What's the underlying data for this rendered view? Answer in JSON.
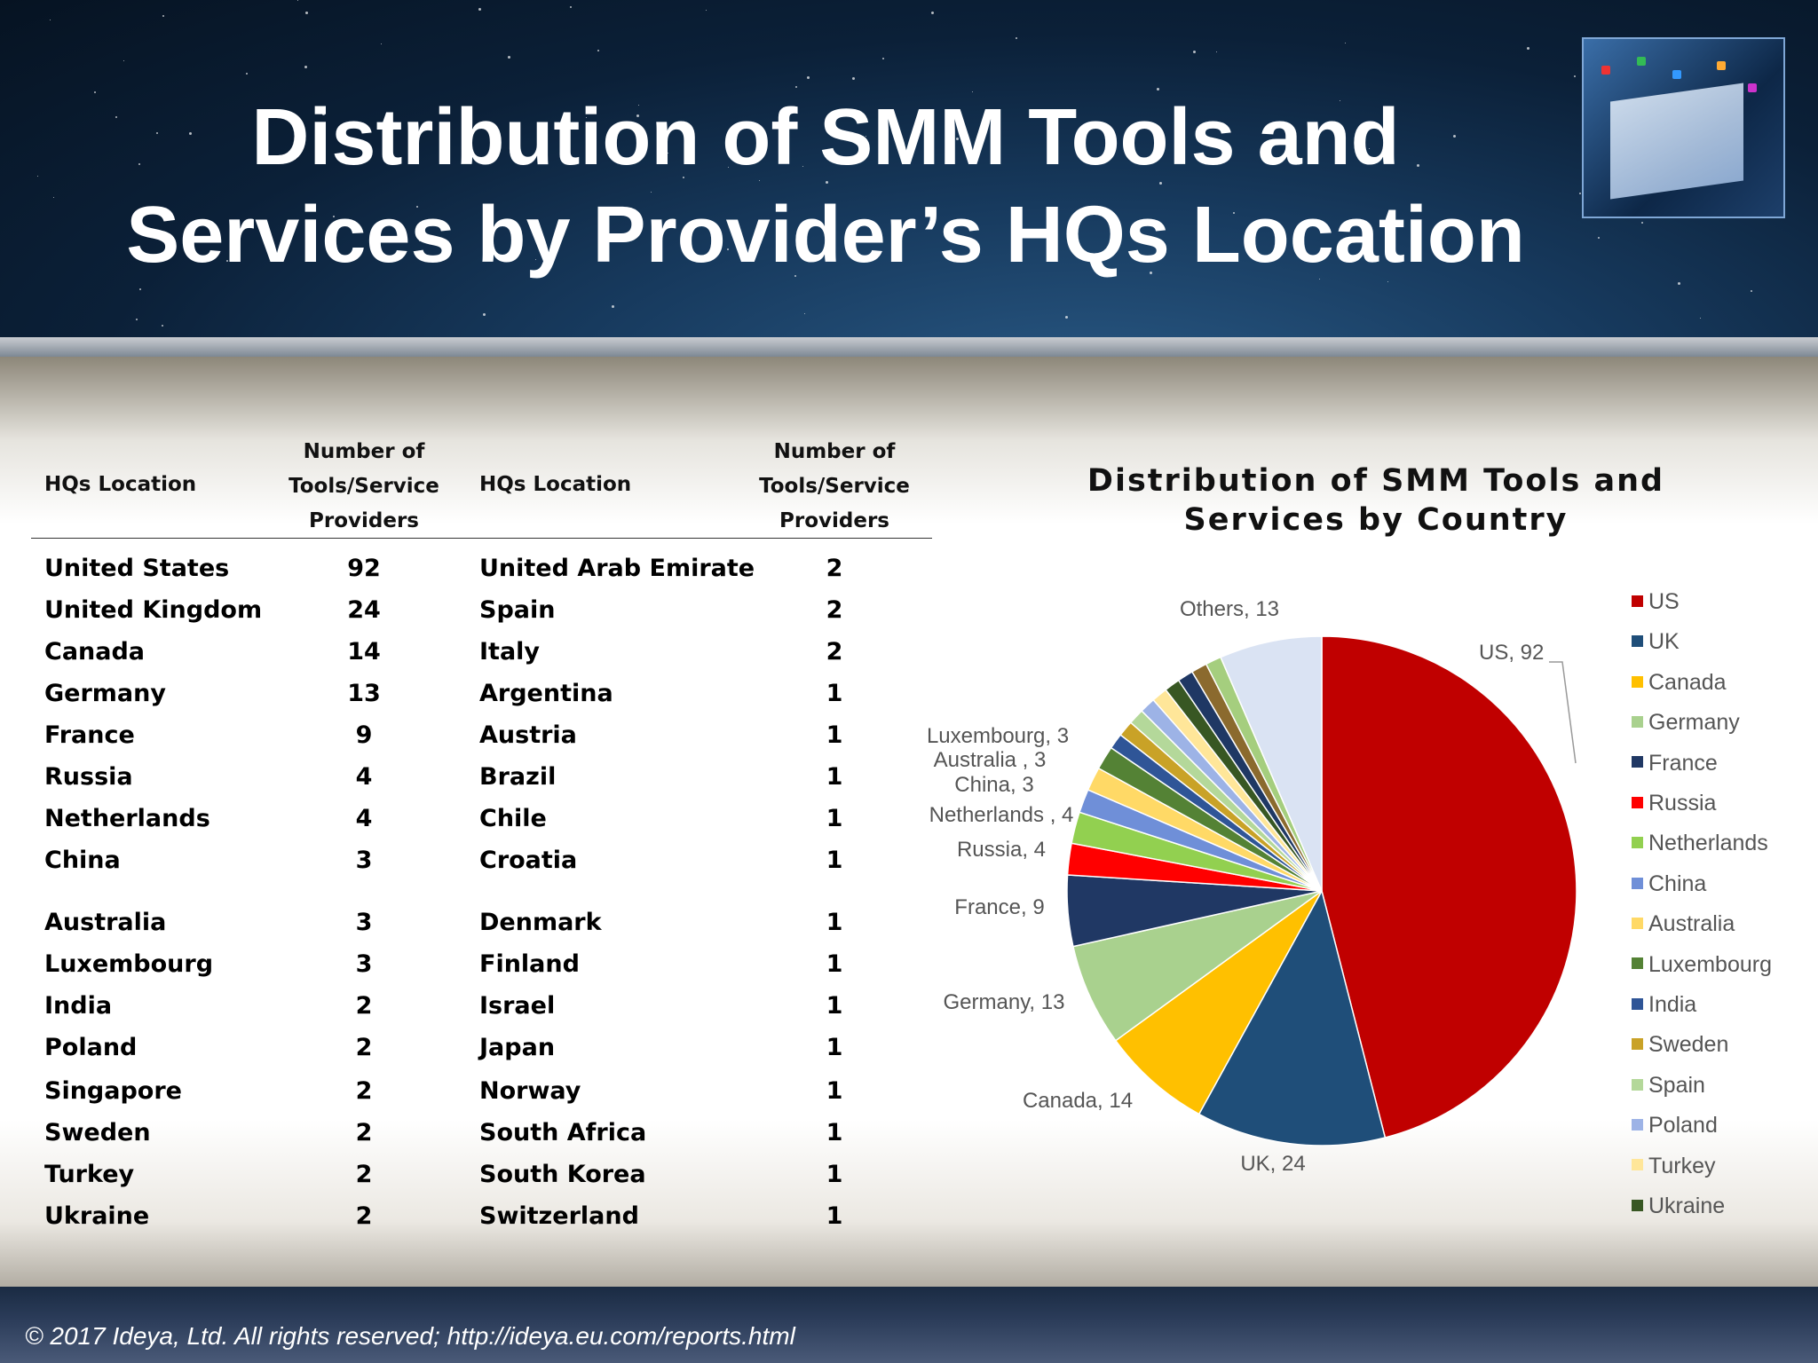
{
  "title_lines": [
    "Distribution of SMM Tools and",
    "Services by Provider’s HQs Location"
  ],
  "footer": "© 2017 Ideya, Ltd. All rights reserved;  http://ideya.eu.com/reports.html",
  "table": {
    "headers": {
      "location": "HQs Location",
      "count": [
        "Number of",
        "Tools/Service",
        "Providers"
      ]
    },
    "left": [
      [
        "United States",
        "92"
      ],
      [
        "United Kingdom",
        "24"
      ],
      [
        "Canada",
        "14"
      ],
      [
        "Germany",
        "13"
      ],
      [
        "France",
        "9"
      ],
      [
        "Russia",
        "4"
      ],
      [
        "Netherlands",
        "4"
      ],
      [
        "China",
        "3"
      ],
      [
        "Australia",
        "3"
      ],
      [
        "Luxembourg",
        "3"
      ],
      [
        "India",
        "2"
      ],
      [
        "Poland",
        "2"
      ],
      [
        "Singapore",
        "2"
      ],
      [
        "Sweden",
        "2"
      ],
      [
        "Turkey",
        "2"
      ],
      [
        "Ukraine",
        "2"
      ]
    ],
    "right": [
      [
        "United Arab Emirate",
        "2"
      ],
      [
        "Spain",
        "2"
      ],
      [
        "Italy",
        "2"
      ],
      [
        "Argentina",
        "1"
      ],
      [
        "Austria",
        "1"
      ],
      [
        "Brazil",
        "1"
      ],
      [
        "Chile",
        "1"
      ],
      [
        "Croatia",
        "1"
      ],
      [
        "Denmark",
        "1"
      ],
      [
        "Finland",
        "1"
      ],
      [
        "Israel",
        "1"
      ],
      [
        "Japan",
        "1"
      ],
      [
        "Norway",
        "1"
      ],
      [
        "South Africa",
        "1"
      ],
      [
        "South Korea",
        "1"
      ],
      [
        "Switzerland",
        "1"
      ]
    ]
  },
  "chart_data": {
    "type": "pie",
    "title_lines": [
      "Distribution of SMM Tools and",
      "Services by Country"
    ],
    "slices": [
      {
        "name": "US",
        "value": 92,
        "color": "#C00000",
        "label": "US, 92"
      },
      {
        "name": "UK",
        "value": 24,
        "color": "#1F4E79",
        "label": "UK, 24"
      },
      {
        "name": "Canada",
        "value": 14,
        "color": "#FFC000",
        "label": "Canada, 14"
      },
      {
        "name": "Germany",
        "value": 13,
        "color": "#A9D18E",
        "label": "Germany, 13"
      },
      {
        "name": "France",
        "value": 9,
        "color": "#203864",
        "label": "France, 9"
      },
      {
        "name": "Russia",
        "value": 4,
        "color": "#FF0000",
        "label": "Russia, 4"
      },
      {
        "name": "Netherlands",
        "value": 4,
        "color": "#92D050",
        "label": "Netherlands , 4"
      },
      {
        "name": "China",
        "value": 3,
        "color": "#6F8FD8",
        "label": "China, 3"
      },
      {
        "name": "Australia",
        "value": 3,
        "color": "#FFD966",
        "label": "Australia , 3"
      },
      {
        "name": "Luxembourg",
        "value": 3,
        "color": "#548235",
        "label": "Luxembourg, 3"
      },
      {
        "name": "India",
        "value": 2,
        "color": "#2F5597",
        "label": ""
      },
      {
        "name": "Sweden",
        "value": 2,
        "color": "#C9A227",
        "label": ""
      },
      {
        "name": "Spain",
        "value": 2,
        "color": "#B4D89A",
        "label": ""
      },
      {
        "name": "Poland",
        "value": 2,
        "color": "#9DB3E6",
        "label": ""
      },
      {
        "name": "Turkey",
        "value": 2,
        "color": "#FFE699",
        "label": ""
      },
      {
        "name": "Ukraine",
        "value": 2,
        "color": "#385723",
        "label": ""
      },
      {
        "name": "",
        "value": 2,
        "color": "#1F3864",
        "label": ""
      },
      {
        "name": "",
        "value": 2,
        "color": "#8B6A2E",
        "label": ""
      },
      {
        "name": "",
        "value": 2,
        "color": "#A5CE7E",
        "label": ""
      },
      {
        "name": "Others",
        "value": 13,
        "color": "#DAE3F3",
        "label": "Others, 13"
      }
    ],
    "legend_position": "right"
  }
}
